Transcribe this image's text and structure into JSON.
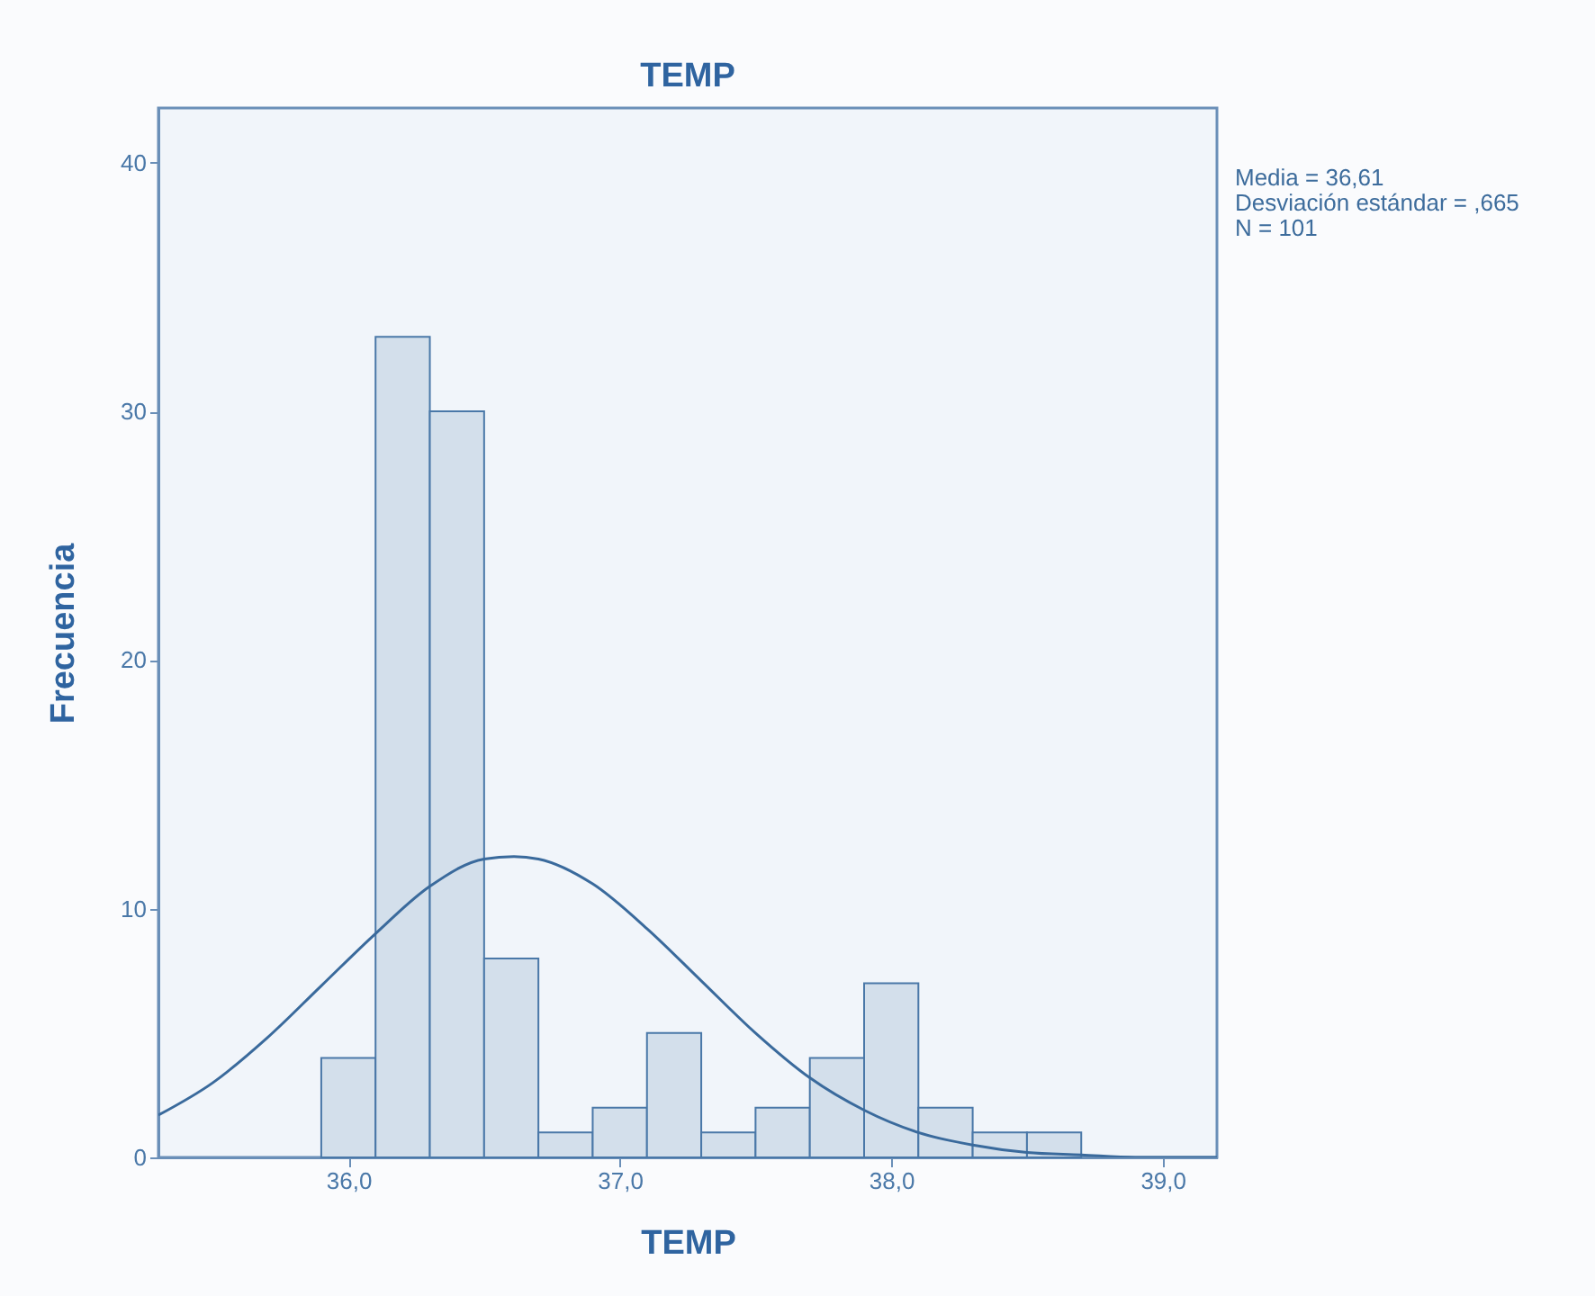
{
  "chart_data": {
    "type": "histogram",
    "title": "TEMP",
    "xlabel": "TEMP",
    "ylabel": "Frecuencia",
    "annotations": [
      "Media = 36,61",
      "Desviación estándar = ,665",
      "N = 101"
    ],
    "bins": [
      35.9,
      36.1,
      36.3,
      36.5,
      36.7,
      36.9,
      37.1,
      37.3,
      37.5,
      37.7,
      37.9,
      38.1,
      38.3,
      38.5,
      38.7
    ],
    "series": [
      {
        "color": "#d3dfeb",
        "values": [
          4,
          33,
          30,
          8,
          1,
          2,
          5,
          1,
          2,
          4,
          7,
          2,
          1,
          1
        ]
      },
      {
        "type": "line",
        "color": "#3a6a9c",
        "x": [
          35.3,
          35.5,
          35.7,
          35.9,
          36.1,
          36.3,
          36.5,
          36.61,
          36.7,
          36.9,
          37.1,
          37.3,
          37.5,
          37.7,
          37.9,
          38.1,
          38.3,
          38.5,
          38.7,
          38.9,
          39.2
        ],
        "values": [
          1.7,
          3.0,
          4.8,
          6.9,
          9.0,
          10.9,
          12.0,
          12.1,
          12.0,
          11.0,
          9.2,
          7.1,
          5.0,
          3.2,
          1.9,
          1.0,
          0.5,
          0.2,
          0.1,
          0.0,
          0.0
        ]
      }
    ],
    "xlim": [
      35.3,
      39.2
    ],
    "xticks": [
      {
        "value": 36,
        "label": "36,0"
      },
      {
        "value": 37,
        "label": "37,0"
      },
      {
        "value": 38,
        "label": "38,0"
      },
      {
        "value": 39,
        "label": "39,0"
      }
    ],
    "ylim": [
      0,
      42.2
    ],
    "yticks": [
      0,
      10,
      20,
      30,
      40
    ]
  }
}
